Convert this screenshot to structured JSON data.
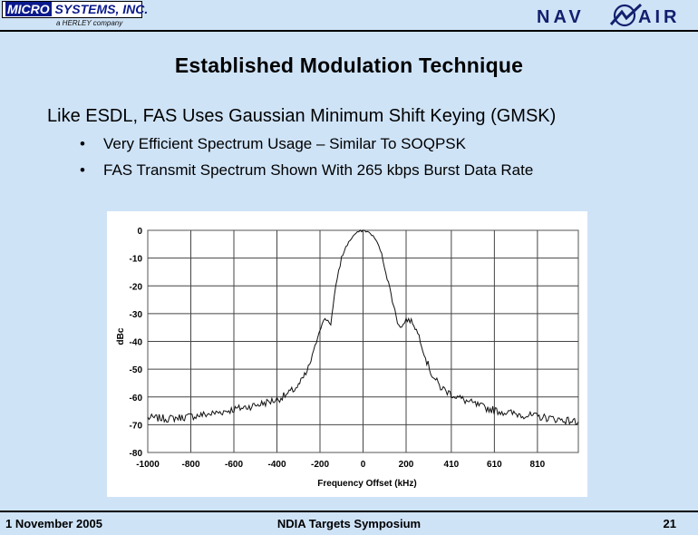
{
  "header": {
    "logo_left_text": "MICRO SYSTEMS, INC.",
    "logo_left_highlight": "MICRO",
    "logo_left_rest": " SYSTEMS, INC.",
    "logo_left_sub": "a HERLEY company",
    "logo_right_text_a": "NAV",
    "logo_right_text_b": "AIR"
  },
  "slide": {
    "title": "Established Modulation Technique",
    "subtitle": "Like ESDL, FAS Uses Gaussian Minimum Shift Keying (GMSK)",
    "bullets": [
      "Very Efficient Spectrum Usage – Similar To SOQPSK",
      "FAS Transmit Spectrum Shown With 265 kbps Burst Data Rate"
    ],
    "bullet_symbol": "•"
  },
  "footer": {
    "date": "1 November 2005",
    "event": "NDIA Targets Symposium",
    "page": "21"
  },
  "colors": {
    "background": "#cfe3f7",
    "logo_blue": "#0a1a8c",
    "navair_blue": "#13206e",
    "trace": "#111111"
  },
  "chart_data": {
    "type": "line",
    "title": "",
    "xlabel": "Frequency Offset (kHz)",
    "ylabel": "dBc",
    "xlim": [
      -1000,
      1000
    ],
    "ylim": [
      -80,
      0
    ],
    "x_ticks": [
      -1000,
      -800,
      -600,
      -400,
      -200,
      0,
      200,
      410,
      610,
      810
    ],
    "x_tick_labels": [
      "-1000",
      "-800",
      "-600",
      "-400",
      "-200",
      "0",
      "200",
      "410",
      "610",
      "810"
    ],
    "y_ticks": [
      0,
      -10,
      -20,
      -30,
      -40,
      -50,
      -60,
      -70,
      -80
    ],
    "y_tick_labels": [
      "0",
      "-10",
      "-20",
      "-30",
      "-40",
      "-50",
      "-60",
      "-70",
      "-80"
    ],
    "grid": true,
    "series": [
      {
        "values": [
          [
            -1000,
            -67.5
          ],
          [
            -900,
            -67.8
          ],
          [
            -800,
            -67.0
          ],
          [
            -700,
            -66.0
          ],
          [
            -600,
            -64.5
          ],
          [
            -500,
            -63.0
          ],
          [
            -400,
            -61.0
          ],
          [
            -350,
            -59.0
          ],
          [
            -300,
            -56.0
          ],
          [
            -260,
            -51.0
          ],
          [
            -230,
            -44.0
          ],
          [
            -210,
            -38.0
          ],
          [
            -190,
            -33.0
          ],
          [
            -170,
            -32.0
          ],
          [
            -150,
            -33.5
          ],
          [
            -140,
            -28.0
          ],
          [
            -120,
            -17.0
          ],
          [
            -100,
            -10.0
          ],
          [
            -80,
            -6.0
          ],
          [
            -60,
            -3.5
          ],
          [
            -40,
            -1.5
          ],
          [
            -20,
            -0.5
          ],
          [
            0,
            0.0
          ],
          [
            20,
            -0.5
          ],
          [
            40,
            -1.5
          ],
          [
            60,
            -3.5
          ],
          [
            80,
            -7.0
          ],
          [
            100,
            -13.0
          ],
          [
            130,
            -23.0
          ],
          [
            160,
            -33.0
          ],
          [
            180,
            -35.0
          ],
          [
            200,
            -32.0
          ],
          [
            230,
            -33.0
          ],
          [
            260,
            -38.0
          ],
          [
            290,
            -46.0
          ],
          [
            320,
            -52.0
          ],
          [
            360,
            -56.5
          ],
          [
            410,
            -59.0
          ],
          [
            480,
            -61.5
          ],
          [
            550,
            -63.5
          ],
          [
            620,
            -65.0
          ],
          [
            700,
            -66.0
          ],
          [
            800,
            -67.0
          ],
          [
            900,
            -68.0
          ],
          [
            1000,
            -69.0
          ]
        ]
      }
    ]
  }
}
